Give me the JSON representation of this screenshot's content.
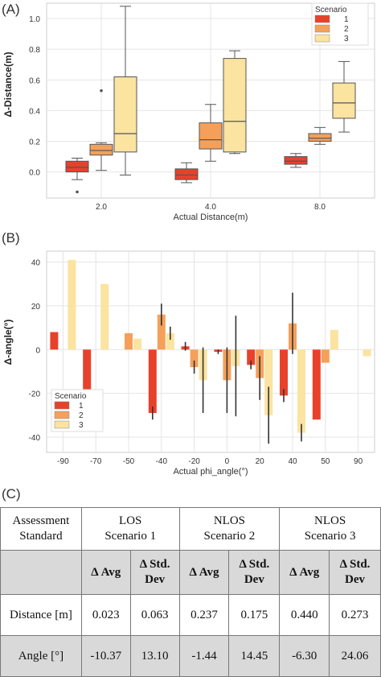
{
  "chart_data": [
    {
      "type": "box",
      "panel_label": "(A)",
      "xlabel": "Actual Distance(m)",
      "ylabel": "Δ-Distance(m)",
      "categories": [
        "2.0",
        "4.0",
        "8.0"
      ],
      "ylim": [
        -0.17,
        1.1
      ],
      "yticks": [
        "0.0",
        "0.2",
        "0.4",
        "0.6",
        "0.8",
        "1.0"
      ],
      "grid": true,
      "legend_title": "Scenario",
      "legend_position": "top-right",
      "series": [
        {
          "name": "1",
          "color": "#e8412b",
          "boxes": [
            {
              "whislo": -0.05,
              "q1": 0.0,
              "med": 0.03,
              "q3": 0.07,
              "whishi": 0.09,
              "fliers": [
                -0.13
              ]
            },
            {
              "whislo": -0.07,
              "q1": -0.05,
              "med": -0.02,
              "q3": 0.02,
              "whishi": 0.06,
              "fliers": []
            },
            {
              "whislo": 0.03,
              "q1": 0.05,
              "med": 0.07,
              "q3": 0.1,
              "whishi": 0.12,
              "fliers": []
            }
          ]
        },
        {
          "name": "2",
          "color": "#f5a05a",
          "boxes": [
            {
              "whislo": 0.01,
              "q1": 0.11,
              "med": 0.14,
              "q3": 0.18,
              "whishi": 0.19,
              "fliers": [
                0.53
              ]
            },
            {
              "whislo": 0.07,
              "q1": 0.15,
              "med": 0.21,
              "q3": 0.32,
              "whishi": 0.44,
              "fliers": []
            },
            {
              "whislo": 0.18,
              "q1": 0.2,
              "med": 0.22,
              "q3": 0.25,
              "whishi": 0.29,
              "fliers": []
            }
          ]
        },
        {
          "name": "3",
          "color": "#fbe3a0",
          "boxes": [
            {
              "whislo": -0.02,
              "q1": 0.13,
              "med": 0.25,
              "q3": 0.62,
              "whishi": 1.08,
              "fliers": []
            },
            {
              "whislo": 0.12,
              "q1": 0.13,
              "med": 0.33,
              "q3": 0.74,
              "whishi": 0.79,
              "fliers": []
            },
            {
              "whislo": 0.26,
              "q1": 0.35,
              "med": 0.45,
              "q3": 0.58,
              "whishi": 0.72,
              "fliers": []
            }
          ]
        }
      ]
    },
    {
      "type": "bar",
      "panel_label": "(B)",
      "xlabel": "Actual phi_angle(°)",
      "ylabel": "Δ-angle(°)",
      "categories": [
        "-90",
        "-70",
        "-50",
        "-40",
        "-20",
        "0",
        "20",
        "40",
        "50",
        "90"
      ],
      "ylim": [
        -47,
        45
      ],
      "yticks": [
        "-40",
        "-20",
        "0",
        "20",
        "40"
      ],
      "grid": true,
      "legend_title": "Scenario",
      "legend_position": "bottom-left",
      "series": [
        {
          "name": "1",
          "color": "#e8412b",
          "values": [
            8,
            -20,
            null,
            -29,
            1.5,
            -1,
            -7,
            -21,
            -32,
            null
          ],
          "err": [
            0,
            0,
            0,
            3,
            2,
            1,
            2,
            3,
            0,
            0
          ]
        },
        {
          "name": "2",
          "color": "#f5a05a",
          "values": [
            null,
            null,
            7.5,
            16,
            -8,
            -14,
            -13,
            12,
            -6,
            null
          ],
          "err": [
            0,
            0,
            0,
            5,
            3,
            15,
            10,
            14,
            0,
            0
          ]
        },
        {
          "name": "3",
          "color": "#fbe3a0",
          "values": [
            41,
            30,
            5,
            7.5,
            -14,
            -7.5,
            -30,
            -38,
            9,
            -3
          ],
          "err": [
            0,
            0,
            0,
            3,
            15,
            23,
            13,
            4,
            0,
            0
          ]
        }
      ]
    }
  ],
  "table": {
    "panel_label": "(C)",
    "header1": {
      "standard": "Assessment Standard",
      "s1_title": "LOS",
      "s1_sub": "Scenario 1",
      "s2_title": "NLOS",
      "s2_sub": "Scenario 2",
      "s3_title": "NLOS",
      "s3_sub": "Scenario 3"
    },
    "header2": {
      "avg": "Δ Avg",
      "std_a": "Δ Std.",
      "std_b": "Dev"
    },
    "rows": [
      {
        "label": "Distance [m]",
        "values": [
          "0.023",
          "0.063",
          "0.237",
          "0.175",
          "0.440",
          "0.273"
        ]
      },
      {
        "label": "Angle [°]",
        "values": [
          "-10.37",
          "13.10",
          "-1.44",
          "14.45",
          "-6.30",
          "24.06"
        ]
      }
    ]
  }
}
